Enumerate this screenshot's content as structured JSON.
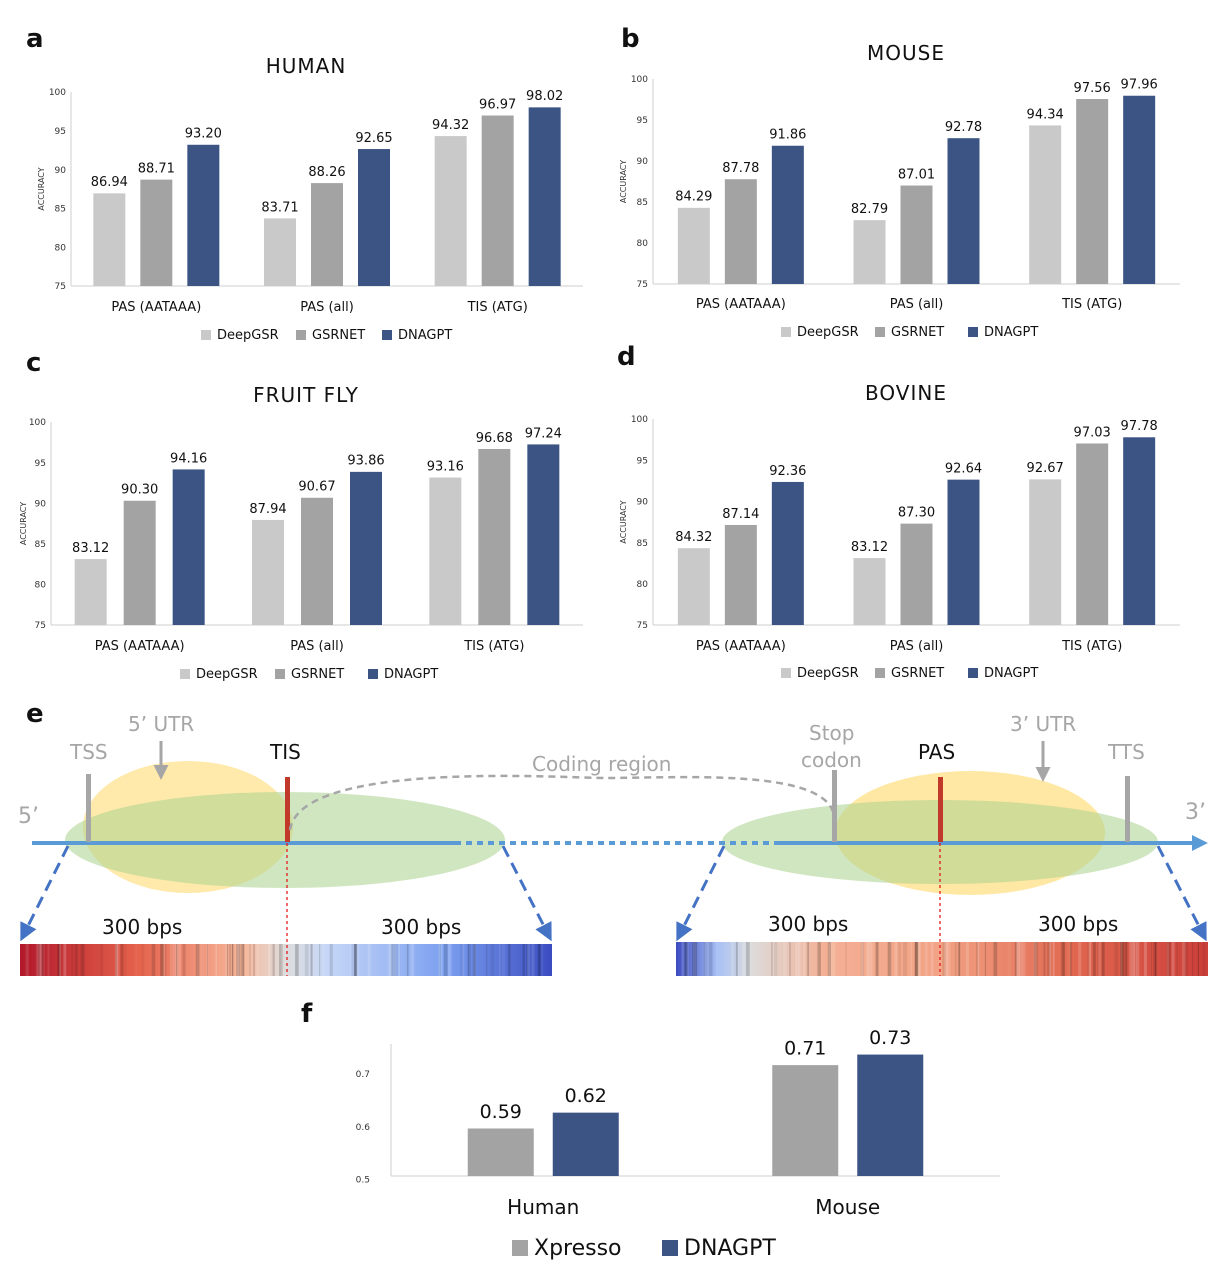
{
  "panel_labels": [
    "a",
    "b",
    "c",
    "d",
    "e",
    "f"
  ],
  "chart_data": [
    {
      "type": "bar",
      "title": "HUMAN",
      "ylabel": "ACCURACY",
      "ylim": [
        75,
        100
      ],
      "yticks": [
        "75",
        "80",
        "85",
        "90",
        "95",
        "100"
      ],
      "categories": [
        "PAS (AATAAA)",
        "PAS (all)",
        "TIS (ATG)"
      ],
      "series": [
        {
          "name": "DeepGSR",
          "color": "#c9c9c9",
          "values": [
            86.94,
            83.71,
            94.32
          ],
          "labels": [
            "86.94",
            "83.71",
            "94.32"
          ]
        },
        {
          "name": "GSRNET",
          "color": "#a3a3a3",
          "values": [
            88.71,
            88.26,
            96.97
          ],
          "labels": [
            "88.71",
            "88.26",
            "96.97"
          ]
        },
        {
          "name": "DNAGPT",
          "color": "#3b5484",
          "values": [
            93.2,
            92.65,
            98.02
          ],
          "labels": [
            "93.20",
            "92.65",
            "98.02"
          ]
        }
      ],
      "legend": "bottom"
    },
    {
      "type": "bar",
      "title": "MOUSE",
      "ylabel": "ACCURACY",
      "ylim": [
        75,
        100
      ],
      "yticks": [
        "75",
        "80",
        "85",
        "90",
        "95",
        "100"
      ],
      "categories": [
        "PAS (AATAAA)",
        "PAS (all)",
        "TIS (ATG)"
      ],
      "series": [
        {
          "name": "DeepGSR",
          "color": "#c9c9c9",
          "values": [
            84.29,
            82.79,
            94.34
          ],
          "labels": [
            "84.29",
            "82.79",
            "94.34"
          ]
        },
        {
          "name": "GSRNET",
          "color": "#a3a3a3",
          "values": [
            87.78,
            87.01,
            97.56
          ],
          "labels": [
            "87.78",
            "87.01",
            "97.56"
          ]
        },
        {
          "name": "DNAGPT",
          "color": "#3b5484",
          "values": [
            91.86,
            92.78,
            97.96
          ],
          "labels": [
            "91.86",
            "92.78",
            "97.96"
          ]
        }
      ],
      "legend": "bottom"
    },
    {
      "type": "bar",
      "title": "FRUIT FLY",
      "ylabel": "ACCURACY",
      "ylim": [
        75,
        100
      ],
      "yticks": [
        "75",
        "80",
        "85",
        "90",
        "95",
        "100"
      ],
      "categories": [
        "PAS (AATAAA)",
        "PAS (all)",
        "TIS (ATG)"
      ],
      "series": [
        {
          "name": "DeepGSR",
          "color": "#c9c9c9",
          "values": [
            83.12,
            87.94,
            93.16
          ],
          "labels": [
            "83.12",
            "87.94",
            "93.16"
          ]
        },
        {
          "name": "GSRNET",
          "color": "#a3a3a3",
          "values": [
            90.3,
            90.67,
            96.68
          ],
          "labels": [
            "90.30",
            "90.67",
            "96.68"
          ]
        },
        {
          "name": "DNAGPT",
          "color": "#3b5484",
          "values": [
            94.16,
            93.86,
            97.24
          ],
          "labels": [
            "94.16",
            "93.86",
            "97.24"
          ]
        }
      ],
      "legend": "bottom"
    },
    {
      "type": "bar",
      "title": "BOVINE",
      "ylabel": "ACCURACY",
      "ylim": [
        75,
        100
      ],
      "yticks": [
        "75",
        "80",
        "85",
        "90",
        "95",
        "100"
      ],
      "categories": [
        "PAS (AATAAA)",
        "PAS (all)",
        "TIS (ATG)"
      ],
      "series": [
        {
          "name": "DeepGSR",
          "color": "#c9c9c9",
          "values": [
            84.32,
            83.12,
            92.67
          ],
          "labels": [
            "84.32",
            "83.12",
            "92.67"
          ]
        },
        {
          "name": "GSRNET",
          "color": "#a3a3a3",
          "values": [
            87.14,
            87.3,
            97.03
          ],
          "labels": [
            "87.14",
            "87.30",
            "97.03"
          ]
        },
        {
          "name": "DNAGPT",
          "color": "#3b5484",
          "values": [
            92.36,
            92.64,
            97.78
          ],
          "labels": [
            "92.36",
            "92.64",
            "97.78"
          ]
        }
      ],
      "legend": "bottom"
    },
    {
      "type": "bar",
      "title": "",
      "ylabel": "",
      "ylim": [
        0.5,
        0.75
      ],
      "yticks": [
        "0.5",
        "0.6",
        "0.7"
      ],
      "categories": [
        "Human",
        "Mouse"
      ],
      "series": [
        {
          "name": "Xpresso",
          "color": "#a3a3a3",
          "values": [
            0.59,
            0.71
          ],
          "labels": [
            "0.59",
            "0.71"
          ]
        },
        {
          "name": "DNAGPT",
          "color": "#3b5484",
          "values": [
            0.62,
            0.73
          ],
          "labels": [
            "0.62",
            "0.73"
          ]
        }
      ],
      "legend": "bottom"
    }
  ],
  "diagram": {
    "five_prime": "5’",
    "three_prime": "3’",
    "tss": "TSS",
    "utr5": "5’ UTR",
    "tis": "TIS",
    "coding_region": "Coding region",
    "stop_codon_line1": "Stop",
    "stop_codon_line2": "codon",
    "pas": "PAS",
    "utr3": "3’ UTR",
    "tts": "TTS",
    "bps_left_1": "300 bps",
    "bps_left_2": "300 bps",
    "bps_right_1": "300 bps",
    "bps_right_2": "300 bps",
    "colors": {
      "strand": "#5b9bd5",
      "marker_gray": "#a6a6a6",
      "marker_red": "#c0392b",
      "yellow_ellipse": "#ffd966",
      "green_ellipse": "#a9d18e"
    }
  }
}
